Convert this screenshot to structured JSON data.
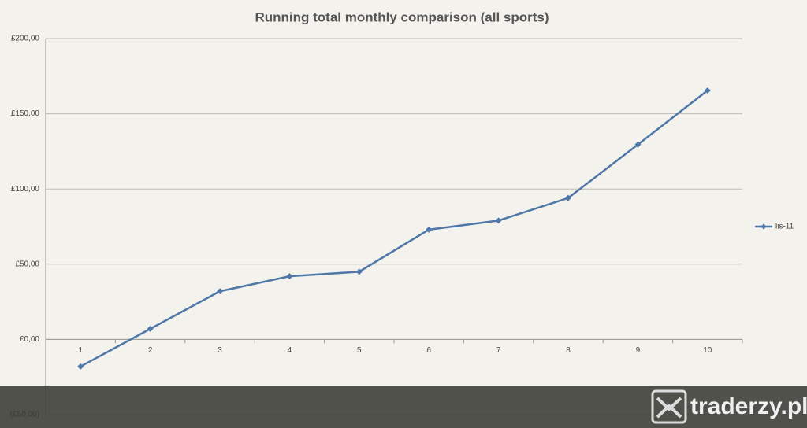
{
  "chart_data": {
    "type": "line",
    "title": "Running total monthly comparison (all sports)",
    "categories": [
      "1",
      "2",
      "3",
      "4",
      "5",
      "6",
      "7",
      "8",
      "9",
      "10"
    ],
    "series": [
      {
        "name": "lis-11",
        "color": "#4f77a8",
        "values": [
          -18,
          7,
          32,
          42,
          45,
          73,
          79,
          94,
          129.5,
          165.5
        ]
      }
    ],
    "ylim": [
      -50,
      200
    ],
    "yticks": [
      {
        "value": -50,
        "label": "(£50,00)"
      },
      {
        "value": 0,
        "label": "£0,00"
      },
      {
        "value": 50,
        "label": "£50,00"
      },
      {
        "value": 100,
        "label": "£100,00"
      },
      {
        "value": 150,
        "label": "£150,00"
      },
      {
        "value": 200,
        "label": "£200,00"
      }
    ],
    "grid": true,
    "legend": "right"
  },
  "watermark": "traderzy.pl"
}
